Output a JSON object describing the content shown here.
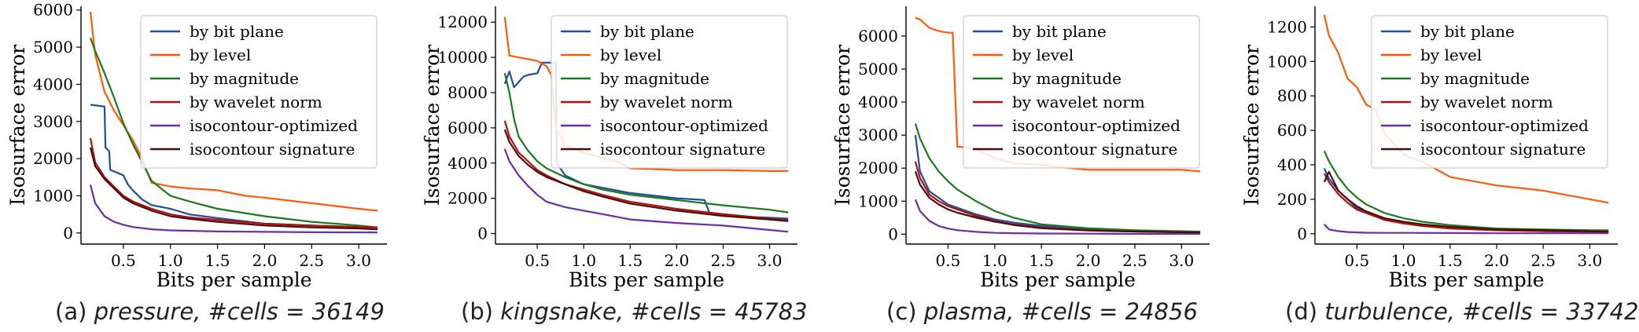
{
  "chart_data": [
    {
      "type": "line",
      "caption_label": "(a)",
      "caption_detail": "pressure, #cells = 36149",
      "xlabel": "Bits per sample",
      "ylabel": "Isosurface error",
      "xlim": [
        0.05,
        3.3
      ],
      "ylim": [
        -300,
        6100
      ],
      "x_ticks": [
        "0.5",
        "1.0",
        "1.5",
        "2.0",
        "2.5",
        "3.0"
      ],
      "y_ticks": [
        "0",
        "1000",
        "2000",
        "3000",
        "4000",
        "5000",
        "6000"
      ],
      "legend": "top-right",
      "series": [
        {
          "name": "by bit plane",
          "color": "#1f4e9c",
          "x": [
            0.15,
            0.3,
            0.31,
            0.35,
            0.36,
            0.5,
            0.55,
            0.6,
            0.7,
            0.8,
            1.0,
            1.2,
            1.5,
            2.0,
            2.5,
            3.2
          ],
          "y": [
            3450,
            3400,
            2300,
            2200,
            1700,
            1550,
            1300,
            1150,
            900,
            750,
            650,
            500,
            400,
            250,
            200,
            150
          ]
        },
        {
          "name": "by level",
          "color": "#ff5a0a",
          "x": [
            0.15,
            0.2,
            0.3,
            0.4,
            0.5,
            0.6,
            0.7,
            0.75,
            0.8,
            1.0,
            1.2,
            1.5,
            1.8,
            2.0,
            2.5,
            3.0,
            3.2
          ],
          "y": [
            5950,
            4800,
            3800,
            3300,
            2900,
            2500,
            2000,
            1650,
            1350,
            1250,
            1200,
            1150,
            1000,
            950,
            800,
            650,
            600
          ]
        },
        {
          "name": "by magnitude",
          "color": "#1b7a1b",
          "x": [
            0.15,
            0.2,
            0.3,
            0.4,
            0.5,
            0.6,
            0.7,
            0.8,
            1.0,
            1.2,
            1.5,
            2.0,
            2.5,
            3.0,
            3.2
          ],
          "y": [
            5250,
            4900,
            4300,
            3650,
            2950,
            2400,
            1900,
            1400,
            1000,
            850,
            650,
            450,
            300,
            200,
            150
          ]
        },
        {
          "name": "by wavelet norm",
          "color": "#b30f0f",
          "x": [
            0.15,
            0.2,
            0.3,
            0.4,
            0.5,
            0.6,
            0.7,
            0.8,
            1.0,
            1.2,
            1.5,
            2.0,
            2.5,
            3.0,
            3.2
          ],
          "y": [
            2550,
            1900,
            1500,
            1250,
            1000,
            850,
            750,
            650,
            500,
            420,
            350,
            250,
            200,
            160,
            150
          ]
        },
        {
          "name": "isocontour-optimized",
          "color": "#6a2fa8",
          "x": [
            0.15,
            0.2,
            0.3,
            0.4,
            0.5,
            0.6,
            0.8,
            1.0,
            1.5,
            2.0,
            2.5,
            3.2
          ],
          "y": [
            1300,
            800,
            450,
            300,
            220,
            160,
            100,
            70,
            40,
            30,
            20,
            15
          ]
        },
        {
          "name": "isocontour signature",
          "color": "#4a0d0d",
          "x": [
            0.15,
            0.2,
            0.3,
            0.4,
            0.5,
            0.6,
            0.7,
            0.8,
            1.0,
            1.2,
            1.5,
            2.0,
            2.5,
            3.0,
            3.2
          ],
          "y": [
            2300,
            1800,
            1450,
            1200,
            950,
            800,
            700,
            600,
            450,
            380,
            300,
            200,
            150,
            120,
            100
          ]
        }
      ]
    },
    {
      "type": "line",
      "caption_label": "(b)",
      "caption_detail": "kingsnake, #cells = 45783",
      "xlabel": "Bits per sample",
      "ylabel": "Isosurface error",
      "xlim": [
        0.05,
        3.3
      ],
      "ylim": [
        -600,
        12900
      ],
      "x_ticks": [
        "0.5",
        "1.0",
        "1.5",
        "2.0",
        "2.5",
        "3.0"
      ],
      "y_ticks": [
        "0",
        "2000",
        "4000",
        "6000",
        "8000",
        "10000",
        "12000"
      ],
      "legend": "top-right",
      "series": [
        {
          "name": "by bit plane",
          "color": "#1f4e9c",
          "x": [
            0.15,
            0.2,
            0.25,
            0.3,
            0.35,
            0.4,
            0.5,
            0.55,
            0.6,
            0.7,
            0.71,
            0.8,
            1.0,
            1.2,
            1.5,
            2.0,
            2.3,
            2.35,
            2.4,
            2.5,
            3.0,
            3.2
          ],
          "y": [
            8500,
            9200,
            8300,
            8600,
            8900,
            9000,
            9100,
            9700,
            9700,
            9700,
            4000,
            3300,
            2800,
            2600,
            2300,
            2000,
            1900,
            1200,
            1100,
            1000,
            900,
            850
          ]
        },
        {
          "name": "by level",
          "color": "#ff5a0a",
          "x": [
            0.15,
            0.2,
            0.3,
            0.4,
            0.5,
            0.6,
            0.65,
            0.7,
            0.75,
            0.8,
            1.0,
            1.2,
            1.4,
            1.5,
            1.8,
            2.0,
            2.5,
            3.0,
            3.2
          ],
          "y": [
            12300,
            10100,
            10000,
            9900,
            9800,
            9500,
            9000,
            6000,
            5500,
            5000,
            4600,
            4300,
            4000,
            3700,
            3650,
            3600,
            3600,
            3550,
            3550
          ]
        },
        {
          "name": "by magnitude",
          "color": "#1b7a1b",
          "x": [
            0.15,
            0.2,
            0.25,
            0.3,
            0.4,
            0.5,
            0.6,
            0.8,
            1.0,
            1.2,
            1.5,
            2.0,
            2.5,
            3.0,
            3.2
          ],
          "y": [
            9100,
            8000,
            6500,
            5500,
            4700,
            4100,
            3700,
            3200,
            2800,
            2500,
            2200,
            1900,
            1600,
            1350,
            1200
          ]
        },
        {
          "name": "by wavelet norm",
          "color": "#b30f0f",
          "x": [
            0.15,
            0.2,
            0.3,
            0.4,
            0.5,
            0.6,
            0.8,
            1.0,
            1.2,
            1.5,
            2.0,
            2.5,
            3.0,
            3.2
          ],
          "y": [
            6400,
            5500,
            4600,
            4100,
            3600,
            3300,
            2800,
            2500,
            2200,
            1800,
            1400,
            1100,
            850,
            750
          ]
        },
        {
          "name": "isocontour-optimized",
          "color": "#6a2fa8",
          "x": [
            0.15,
            0.2,
            0.3,
            0.4,
            0.5,
            0.6,
            0.8,
            1.0,
            1.2,
            1.5,
            2.0,
            2.5,
            3.0,
            3.2
          ],
          "y": [
            4800,
            4100,
            3300,
            2700,
            2200,
            1800,
            1500,
            1300,
            1100,
            800,
            600,
            450,
            200,
            100
          ]
        },
        {
          "name": "isocontour signature",
          "color": "#4a0d0d",
          "x": [
            0.15,
            0.2,
            0.3,
            0.4,
            0.5,
            0.6,
            0.8,
            1.0,
            1.2,
            1.5,
            2.0,
            2.5,
            3.0,
            3.2
          ],
          "y": [
            5900,
            5200,
            4400,
            3900,
            3500,
            3200,
            2800,
            2400,
            2100,
            1700,
            1300,
            1000,
            800,
            700
          ]
        }
      ]
    },
    {
      "type": "line",
      "caption_label": "(c)",
      "caption_detail": "plasma, #cells = 24856",
      "xlabel": "Bits per sample",
      "ylabel": "Isosurface error",
      "xlim": [
        0.05,
        3.3
      ],
      "ylim": [
        -300,
        6900
      ],
      "x_ticks": [
        "0.5",
        "1.0",
        "1.5",
        "2.0",
        "2.5",
        "3.0"
      ],
      "y_ticks": [
        "0",
        "1000",
        "2000",
        "3000",
        "4000",
        "5000",
        "6000"
      ],
      "legend": "top-right",
      "series": [
        {
          "name": "by bit plane",
          "color": "#1f4e9c",
          "x": [
            0.15,
            0.2,
            0.3,
            0.4,
            0.5,
            0.6,
            0.8,
            1.0,
            1.2,
            1.5,
            2.0,
            2.5,
            3.0,
            3.2
          ],
          "y": [
            3000,
            1900,
            1300,
            1100,
            900,
            800,
            600,
            450,
            350,
            250,
            150,
            100,
            80,
            70
          ]
        },
        {
          "name": "by level",
          "color": "#ff5a0a",
          "x": [
            0.15,
            0.2,
            0.3,
            0.35,
            0.4,
            0.5,
            0.55,
            0.58,
            0.6,
            0.8,
            1.0,
            1.2,
            1.5,
            1.8,
            2.0,
            2.5,
            3.0,
            3.2
          ],
          "y": [
            6550,
            6500,
            6250,
            6200,
            6150,
            6100,
            6100,
            4000,
            2650,
            2600,
            2300,
            2150,
            2100,
            2000,
            1950,
            1950,
            1950,
            1900
          ]
        },
        {
          "name": "by magnitude",
          "color": "#1b7a1b",
          "x": [
            0.15,
            0.2,
            0.3,
            0.4,
            0.5,
            0.6,
            0.8,
            1.0,
            1.2,
            1.5,
            2.0,
            2.5,
            3.0,
            3.2
          ],
          "y": [
            3350,
            2900,
            2300,
            1900,
            1600,
            1350,
            1000,
            700,
            500,
            300,
            180,
            120,
            90,
            80
          ]
        },
        {
          "name": "by wavelet norm",
          "color": "#b30f0f",
          "x": [
            0.15,
            0.2,
            0.3,
            0.4,
            0.5,
            0.6,
            0.8,
            1.0,
            1.2,
            1.5,
            2.0,
            2.5,
            3.0,
            3.2
          ],
          "y": [
            2200,
            1700,
            1200,
            1000,
            850,
            750,
            550,
            400,
            300,
            200,
            120,
            80,
            60,
            50
          ]
        },
        {
          "name": "isocontour-optimized",
          "color": "#6a2fa8",
          "x": [
            0.15,
            0.2,
            0.3,
            0.4,
            0.5,
            0.6,
            0.8,
            1.0,
            1.2,
            1.5,
            2.0,
            2.5,
            3.0,
            3.2
          ],
          "y": [
            1050,
            700,
            400,
            250,
            170,
            120,
            70,
            40,
            30,
            20,
            15,
            10,
            10,
            10
          ]
        },
        {
          "name": "isocontour signature",
          "color": "#4a0d0d",
          "x": [
            0.15,
            0.2,
            0.3,
            0.4,
            0.5,
            0.6,
            0.8,
            1.0,
            1.2,
            1.5,
            2.0,
            2.5,
            3.0,
            3.2
          ],
          "y": [
            1900,
            1500,
            1100,
            900,
            750,
            650,
            500,
            380,
            280,
            180,
            110,
            80,
            60,
            50
          ]
        }
      ]
    },
    {
      "type": "line",
      "caption_label": "(d)",
      "caption_detail": "turbulence, #cells = 33742",
      "xlabel": "Bits per sample",
      "ylabel": "Isosurface error",
      "xlim": [
        0.05,
        3.3
      ],
      "ylim": [
        -60,
        1320
      ],
      "x_ticks": [
        "0.5",
        "1.0",
        "1.5",
        "2.0",
        "2.5",
        "3.0"
      ],
      "y_ticks": [
        "0",
        "200",
        "400",
        "600",
        "800",
        "1000",
        "1200"
      ],
      "legend": "top-right",
      "series": [
        {
          "name": "by bit plane",
          "color": "#1f4e9c",
          "x": [
            0.15,
            0.2,
            0.3,
            0.4,
            0.5,
            0.6,
            0.8,
            1.0,
            1.2,
            1.5,
            2.0,
            2.5,
            3.0,
            3.2
          ],
          "y": [
            380,
            320,
            250,
            200,
            150,
            120,
            90,
            60,
            50,
            35,
            20,
            15,
            12,
            10
          ]
        },
        {
          "name": "by level",
          "color": "#ff5a0a",
          "x": [
            0.15,
            0.2,
            0.3,
            0.4,
            0.5,
            0.6,
            0.7,
            0.8,
            1.0,
            1.2,
            1.4,
            1.5,
            2.0,
            2.5,
            3.0,
            3.2
          ],
          "y": [
            1270,
            1150,
            1050,
            900,
            850,
            750,
            720,
            580,
            460,
            420,
            360,
            330,
            280,
            250,
            200,
            180
          ]
        },
        {
          "name": "by magnitude",
          "color": "#1b7a1b",
          "x": [
            0.15,
            0.2,
            0.3,
            0.4,
            0.5,
            0.6,
            0.8,
            1.0,
            1.2,
            1.5,
            2.0,
            2.5,
            3.0,
            3.2
          ],
          "y": [
            480,
            420,
            330,
            260,
            210,
            170,
            120,
            90,
            70,
            50,
            30,
            25,
            20,
            20
          ]
        },
        {
          "name": "by wavelet norm",
          "color": "#b30f0f",
          "x": [
            0.15,
            0.2,
            0.3,
            0.4,
            0.5,
            0.6,
            0.8,
            1.0,
            1.2,
            1.5,
            2.0,
            2.5,
            3.0,
            3.2
          ],
          "y": [
            350,
            300,
            230,
            180,
            140,
            120,
            80,
            60,
            45,
            30,
            20,
            15,
            12,
            10
          ]
        },
        {
          "name": "isocontour-optimized",
          "color": "#6a2fa8",
          "x": [
            0.15,
            0.2,
            0.3,
            0.4,
            0.5,
            0.6,
            0.8,
            1.0,
            1.5,
            2.0,
            2.5,
            3.2
          ],
          "y": [
            55,
            25,
            15,
            10,
            8,
            6,
            5,
            5,
            4,
            3,
            3,
            3
          ]
        },
        {
          "name": "isocontour signature",
          "color": "#4a0d0d",
          "x": [
            0.15,
            0.2,
            0.3,
            0.4,
            0.5,
            0.6,
            0.8,
            1.0,
            1.2,
            1.5,
            2.0,
            2.5,
            3.0,
            3.2
          ],
          "y": [
            300,
            360,
            250,
            200,
            160,
            130,
            90,
            70,
            55,
            40,
            25,
            20,
            15,
            12
          ]
        }
      ]
    }
  ]
}
